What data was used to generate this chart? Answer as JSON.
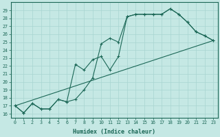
{
  "xlabel": "Humidex (Indice chaleur)",
  "bg_color": "#c5e8e4",
  "grid_color": "#a8d5d0",
  "line_color": "#1a6655",
  "xlim": [
    -0.5,
    23.5
  ],
  "ylim": [
    15.5,
    30.0
  ],
  "xtick_labels": [
    "0",
    "1",
    "2",
    "3",
    "4",
    "5",
    "6",
    "7",
    "8",
    "9",
    "10",
    "11",
    "12",
    "13",
    "14",
    "15",
    "16",
    "17",
    "18",
    "19",
    "20",
    "21",
    "22",
    "23"
  ],
  "ytick_values": [
    16,
    17,
    18,
    19,
    20,
    21,
    22,
    23,
    24,
    25,
    26,
    27,
    28,
    29
  ],
  "line1_x": [
    0,
    1,
    2,
    3,
    4,
    5,
    6,
    7,
    8,
    9,
    10,
    11,
    12,
    13,
    14,
    15,
    16,
    17,
    18,
    19,
    20,
    21,
    22,
    23
  ],
  "line1_y": [
    17.0,
    16.1,
    17.3,
    16.6,
    16.6,
    17.8,
    17.5,
    17.8,
    19.0,
    20.5,
    24.8,
    25.5,
    25.0,
    28.2,
    28.5,
    28.5,
    28.5,
    28.5,
    29.2,
    28.5,
    27.5,
    26.3,
    25.8,
    25.2
  ],
  "line2_x": [
    0,
    1,
    2,
    3,
    4,
    5,
    6,
    7,
    8,
    9,
    10,
    11,
    12,
    13,
    14,
    15,
    16,
    17,
    18,
    19,
    20,
    21,
    22,
    23
  ],
  "line2_y": [
    17.0,
    16.1,
    17.3,
    16.6,
    16.6,
    17.8,
    17.5,
    22.2,
    21.5,
    22.8,
    23.2,
    21.5,
    23.2,
    28.2,
    28.5,
    28.5,
    28.5,
    28.5,
    29.2,
    28.5,
    27.5,
    26.3,
    25.8,
    25.2
  ],
  "line3_x": [
    0,
    23
  ],
  "line3_y": [
    17.0,
    25.2
  ]
}
